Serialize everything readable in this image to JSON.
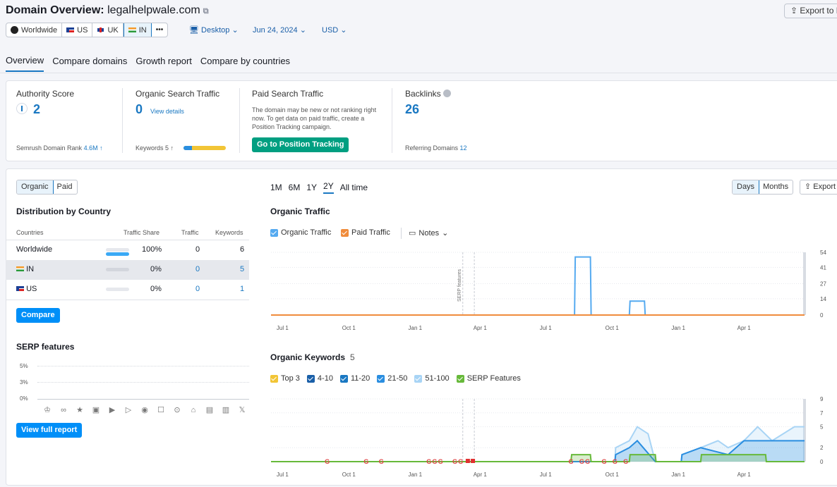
{
  "header": {
    "title_prefix": "Domain Overview:",
    "domain": "legalhelpwale.com",
    "export_label": "Export to PDF",
    "databases": [
      {
        "label": "Worldwide",
        "flag": "globe",
        "selected": false
      },
      {
        "label": "US",
        "flag": "us",
        "selected": false
      },
      {
        "label": "UK",
        "flag": "uk",
        "selected": false
      },
      {
        "label": "IN",
        "flag": "in",
        "selected": true
      }
    ],
    "more_label": "•••",
    "device": "Desktop",
    "date": "Jun 24, 2024",
    "currency": "USD"
  },
  "tabs": [
    "Overview",
    "Compare domains",
    "Growth report",
    "Compare by countries"
  ],
  "summary": {
    "authority": {
      "label": "Authority Score",
      "value": "2",
      "rank_label": "Semrush Domain Rank",
      "rank_value": "4.6M ↑"
    },
    "organic": {
      "label": "Organic Search Traffic",
      "value": "0",
      "link": "View details",
      "keywords_label": "Keywords",
      "keywords_value": "5 ↑"
    },
    "paid": {
      "label": "Paid Search Traffic",
      "note": "The domain may be new or not ranking right now. To get data on paid traffic, create a Position Tracking campaign.",
      "button": "Go to Position Tracking"
    },
    "backlinks": {
      "label": "Backlinks",
      "value": "26",
      "ref_label": "Referring Domains",
      "ref_value": "12"
    }
  },
  "left": {
    "toggle": [
      "Organic",
      "Paid"
    ],
    "dist_title": "Distribution by Country",
    "columns": [
      "Countries",
      "Traffic Share",
      "Traffic",
      "Keywords"
    ],
    "rows": [
      {
        "country": "Worldwide",
        "share": "100%",
        "traffic": "0",
        "keywords": "6",
        "fill": 1.0
      },
      {
        "country": "IN",
        "share": "0%",
        "traffic": "0",
        "keywords": "5",
        "fill": 0
      },
      {
        "country": "US",
        "share": "0%",
        "traffic": "0",
        "keywords": "1",
        "fill": 0
      }
    ],
    "compare_btn": "Compare",
    "serp_title": "SERP features",
    "serp_y": [
      "5%",
      "3%",
      "0%"
    ],
    "serp_icons": [
      "crown-icon",
      "link-icon",
      "star-icon",
      "image-icon",
      "play-icon",
      "video-icon",
      "play-circle-icon",
      "review-icon",
      "pin-icon",
      "cap-icon",
      "doc-icon",
      "briefcase-icon",
      "x-icon"
    ],
    "full_report_btn": "View full report"
  },
  "right": {
    "ranges": [
      "1M",
      "6M",
      "1Y",
      "2Y",
      "All time"
    ],
    "active_range": "2Y",
    "granularity": [
      "Days",
      "Months"
    ],
    "export_label": "Export",
    "traffic_title": "Organic Traffic",
    "traffic_legend": [
      "Organic Traffic",
      "Paid Traffic"
    ],
    "notes_label": "Notes",
    "serp_marker_label": "SERP features",
    "kw_title": "Organic Keywords",
    "kw_count": "5",
    "kw_legend": [
      "Top 3",
      "4-10",
      "11-20",
      "21-50",
      "51-100",
      "SERP Features"
    ],
    "x_ticks": [
      "Jul 1",
      "Oct 1",
      "Jan 1",
      "Apr 1",
      "Jul 1",
      "Oct 1",
      "Jan 1",
      "Apr 1"
    ]
  },
  "chart_data": [
    {
      "type": "line",
      "title": "Organic Traffic",
      "x_ticks": [
        "Jul 1",
        "Oct 1",
        "Jan 1",
        "Apr 1",
        "Jul 1",
        "Oct 1",
        "Jan 1",
        "Apr 1"
      ],
      "y_ticks": [
        "54",
        "41",
        "27",
        "14",
        "0"
      ],
      "ylim": [
        0,
        54
      ],
      "series": [
        {
          "name": "Organic Traffic",
          "color": "#55aaf0",
          "points": [
            [
              "2022-06-15",
              0
            ],
            [
              "2023-08-10",
              0
            ],
            [
              "2023-08-11",
              50
            ],
            [
              "2023-09-01",
              50
            ],
            [
              "2023-09-02",
              0
            ],
            [
              "2023-10-25",
              0
            ],
            [
              "2023-10-26",
              12
            ],
            [
              "2023-11-15",
              12
            ],
            [
              "2023-11-16",
              0
            ],
            [
              "2024-06-24",
              0
            ]
          ]
        },
        {
          "name": "Paid Traffic",
          "color": "#f08c3c",
          "points": [
            [
              "2022-06-15",
              0
            ],
            [
              "2024-06-24",
              0
            ]
          ]
        }
      ]
    },
    {
      "type": "area",
      "title": "Organic Keywords",
      "x_ticks": [
        "Jul 1",
        "Oct 1",
        "Jan 1",
        "Apr 1",
        "Jul 1",
        "Oct 1",
        "Jan 1",
        "Apr 1"
      ],
      "y_ticks": [
        "9",
        "7",
        "5",
        "2",
        "0"
      ],
      "ylim": [
        0,
        9
      ],
      "series": [
        {
          "name": "51-100",
          "color": "#a8d4f5",
          "points": [
            [
              "2022-06-15",
              0
            ],
            [
              "2023-10-05",
              0
            ],
            [
              "2023-10-06",
              2
            ],
            [
              "2023-10-25",
              3
            ],
            [
              "2023-11-05",
              5
            ],
            [
              "2023-11-20",
              4
            ],
            [
              "2023-11-30",
              0
            ],
            [
              "2024-01-05",
              0
            ],
            [
              "2024-01-06",
              1
            ],
            [
              "2024-02-01",
              2
            ],
            [
              "2024-02-25",
              3
            ],
            [
              "2024-03-10",
              2
            ],
            [
              "2024-04-01",
              3
            ],
            [
              "2024-04-20",
              5
            ],
            [
              "2024-05-10",
              3
            ],
            [
              "2024-06-10",
              5
            ],
            [
              "2024-06-24",
              5
            ]
          ]
        },
        {
          "name": "21-50",
          "color": "#2a8ee0",
          "points": [
            [
              "2022-06-15",
              0
            ],
            [
              "2023-10-05",
              0
            ],
            [
              "2023-10-06",
              1
            ],
            [
              "2023-10-25",
              2
            ],
            [
              "2023-11-05",
              3
            ],
            [
              "2023-11-30",
              0
            ],
            [
              "2024-01-05",
              0
            ],
            [
              "2024-01-06",
              1
            ],
            [
              "2024-02-01",
              2
            ],
            [
              "2024-03-10",
              1
            ],
            [
              "2024-04-01",
              3
            ],
            [
              "2024-06-24",
              3
            ]
          ]
        },
        {
          "name": "SERP Features",
          "color": "#67b93a",
          "points": [
            [
              "2022-06-15",
              0
            ],
            [
              "2023-08-05",
              0
            ],
            [
              "2023-08-06",
              1
            ],
            [
              "2023-09-01",
              1
            ],
            [
              "2023-09-02",
              0
            ],
            [
              "2023-10-25",
              0
            ],
            [
              "2023-10-26",
              1
            ],
            [
              "2023-11-30",
              1
            ],
            [
              "2023-12-01",
              0
            ],
            [
              "2024-02-01",
              0
            ],
            [
              "2024-02-02",
              1
            ],
            [
              "2024-05-01",
              1
            ],
            [
              "2024-05-02",
              0
            ],
            [
              "2024-06-24",
              0
            ]
          ]
        }
      ],
      "markers_google": [
        "2022-09-01",
        "2022-10-25",
        "2022-11-15",
        "2023-01-20",
        "2023-01-28",
        "2023-02-05",
        "2023-02-25",
        "2023-03-05",
        "2023-08-05",
        "2023-08-20",
        "2023-08-28",
        "2023-09-20",
        "2023-10-05",
        "2023-10-20"
      ],
      "markers_flag": [
        "2023-03-15",
        "2023-03-22"
      ]
    }
  ]
}
